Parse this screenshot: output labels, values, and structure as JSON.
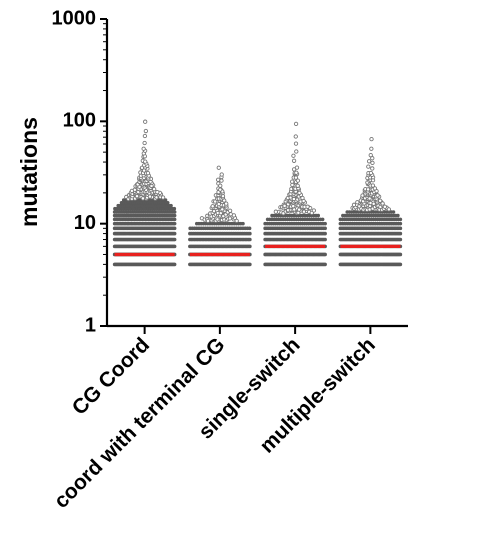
{
  "chart_data": {
    "type": "scatter",
    "title": "",
    "xlabel": "",
    "ylabel": "mutations",
    "yscale": "log",
    "ylim": [
      1,
      1000
    ],
    "yticks": [
      "1",
      "10",
      "100",
      "1000"
    ],
    "categories": [
      "CG Coord",
      "coord with terminal CG",
      "single-switch",
      "multiple-switch"
    ],
    "medians": [
      5,
      5,
      6,
      6
    ],
    "median_color": "#e8211f",
    "point_color": "#666666",
    "legend": "none",
    "grid": false,
    "series": [
      {
        "category": "CG Coord",
        "values": [
          [
            4,
            60
          ],
          [
            5,
            60
          ],
          [
            6,
            60
          ],
          [
            7,
            55
          ],
          [
            8,
            52
          ],
          [
            9,
            48
          ],
          [
            10,
            44
          ],
          [
            11,
            40
          ],
          [
            12,
            36
          ],
          [
            13,
            32
          ],
          [
            14,
            28
          ],
          [
            15,
            25
          ],
          [
            16,
            22
          ],
          [
            17,
            20
          ],
          [
            18,
            18
          ],
          [
            19,
            16
          ],
          [
            20,
            14
          ],
          [
            21,
            12
          ],
          [
            22,
            10
          ],
          [
            23,
            9
          ],
          [
            24,
            8
          ],
          [
            25,
            7
          ],
          [
            26,
            6
          ],
          [
            27,
            6
          ],
          [
            28,
            5
          ],
          [
            29,
            4
          ],
          [
            30,
            4
          ],
          [
            32,
            4
          ],
          [
            34,
            3
          ],
          [
            36,
            3
          ],
          [
            38,
            2
          ],
          [
            40,
            2
          ],
          [
            45,
            2
          ],
          [
            50,
            2
          ],
          [
            55,
            1
          ],
          [
            62,
            1
          ],
          [
            70,
            1
          ],
          [
            80,
            1
          ],
          [
            100,
            1
          ]
        ]
      },
      {
        "category": "coord with terminal CG",
        "values": [
          [
            4,
            50
          ],
          [
            5,
            50
          ],
          [
            6,
            46
          ],
          [
            7,
            40
          ],
          [
            8,
            34
          ],
          [
            9,
            28
          ],
          [
            10,
            22
          ],
          [
            11,
            17
          ],
          [
            12,
            13
          ],
          [
            13,
            10
          ],
          [
            14,
            8
          ],
          [
            15,
            7
          ],
          [
            16,
            6
          ],
          [
            17,
            5
          ],
          [
            18,
            4
          ],
          [
            19,
            4
          ],
          [
            20,
            3
          ],
          [
            21,
            3
          ],
          [
            22,
            2
          ],
          [
            24,
            2
          ],
          [
            26,
            2
          ],
          [
            28,
            1
          ],
          [
            30,
            1
          ],
          [
            35,
            1
          ]
        ]
      },
      {
        "category": "single-switch",
        "values": [
          [
            4,
            50
          ],
          [
            5,
            50
          ],
          [
            6,
            48
          ],
          [
            7,
            44
          ],
          [
            8,
            40
          ],
          [
            9,
            35
          ],
          [
            10,
            30
          ],
          [
            11,
            26
          ],
          [
            12,
            22
          ],
          [
            13,
            18
          ],
          [
            14,
            15
          ],
          [
            15,
            12
          ],
          [
            16,
            10
          ],
          [
            17,
            8
          ],
          [
            18,
            7
          ],
          [
            19,
            6
          ],
          [
            20,
            5
          ],
          [
            21,
            4
          ],
          [
            22,
            4
          ],
          [
            24,
            3
          ],
          [
            26,
            3
          ],
          [
            28,
            2
          ],
          [
            30,
            2
          ],
          [
            32,
            2
          ],
          [
            35,
            2
          ],
          [
            40,
            1
          ],
          [
            45,
            1
          ],
          [
            50,
            1
          ],
          [
            60,
            1
          ],
          [
            70,
            1
          ],
          [
            95,
            1
          ]
        ]
      },
      {
        "category": "multiple-switch",
        "values": [
          [
            4,
            55
          ],
          [
            5,
            55
          ],
          [
            6,
            52
          ],
          [
            7,
            48
          ],
          [
            8,
            44
          ],
          [
            9,
            40
          ],
          [
            10,
            35
          ],
          [
            11,
            30
          ],
          [
            12,
            26
          ],
          [
            13,
            22
          ],
          [
            14,
            18
          ],
          [
            15,
            15
          ],
          [
            16,
            12
          ],
          [
            17,
            10
          ],
          [
            18,
            9
          ],
          [
            19,
            8
          ],
          [
            20,
            7
          ],
          [
            21,
            6
          ],
          [
            22,
            5
          ],
          [
            24,
            4
          ],
          [
            26,
            4
          ],
          [
            28,
            3
          ],
          [
            30,
            3
          ],
          [
            32,
            2
          ],
          [
            35,
            2
          ],
          [
            40,
            2
          ],
          [
            45,
            1
          ],
          [
            48,
            1
          ],
          [
            55,
            1
          ],
          [
            65,
            1
          ]
        ]
      }
    ]
  }
}
